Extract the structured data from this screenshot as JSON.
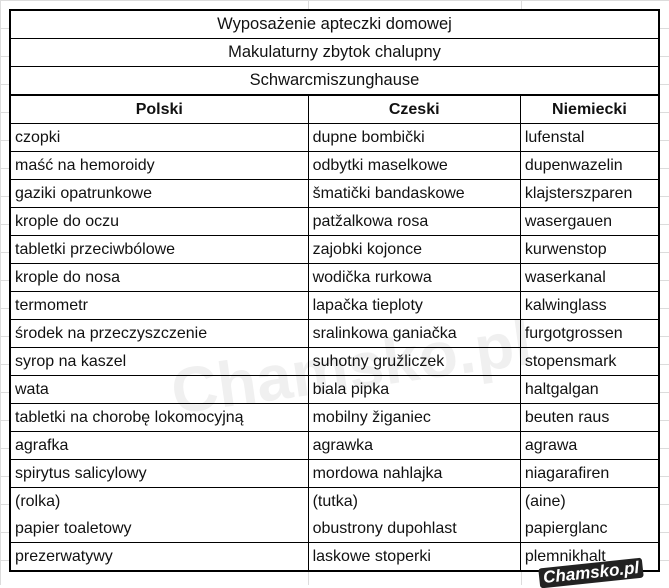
{
  "titles": [
    "Wyposażenie apteczki domowej",
    "Makulaturny zbytok chalupny",
    "Schwarcmiszunghause"
  ],
  "headers": [
    "Polski",
    "Czeski",
    "Niemiecki"
  ],
  "rows": [
    [
      "czopki",
      "dupne bombički",
      "lufenstal"
    ],
    [
      "maść na hemoroidy",
      "odbytki maselkowe",
      "dupenwazelin"
    ],
    [
      "gaziki opatrunkowe",
      "šmatički bandaskowe",
      "klajsterszparen"
    ],
    [
      "krople do oczu",
      "patžalkowa rosa",
      "wasergauen"
    ],
    [
      "tabletki przeciwbólowe",
      "zajobki kojonce",
      "kurwenstop"
    ],
    [
      "krople do nosa",
      "wodička rurkowa",
      "waserkanal"
    ],
    [
      "termometr",
      "lapačka tieploty",
      "kalwinglass"
    ],
    [
      "środek na przeczyszczenie",
      "sralinkowa ganiačka",
      "furgotgrossen"
    ],
    [
      "syrop na kaszel",
      "suhotny gružliczek",
      "stopensmark"
    ],
    [
      "wata",
      "biala pipka",
      "haltgalgan"
    ],
    [
      "tabletki na chorobę lokomocyjną",
      "mobilny žiganiec",
      "beuten raus"
    ],
    [
      "agrafka",
      "agrawka",
      "agrawa"
    ],
    [
      "spirytus salicylowy",
      "mordowa nahlajka",
      "niagarafiren"
    ],
    [
      "(rolka)",
      "(tutka)",
      "(aine)"
    ],
    [
      "papier toaletowy",
      "obustrony dupohlast",
      "papierglanc"
    ],
    [
      "prezerwatywy",
      "laskowe stoperki",
      "plemnikhalt"
    ]
  ],
  "watermark": "Chamsko.pl",
  "logo": "Chamsko.pl"
}
